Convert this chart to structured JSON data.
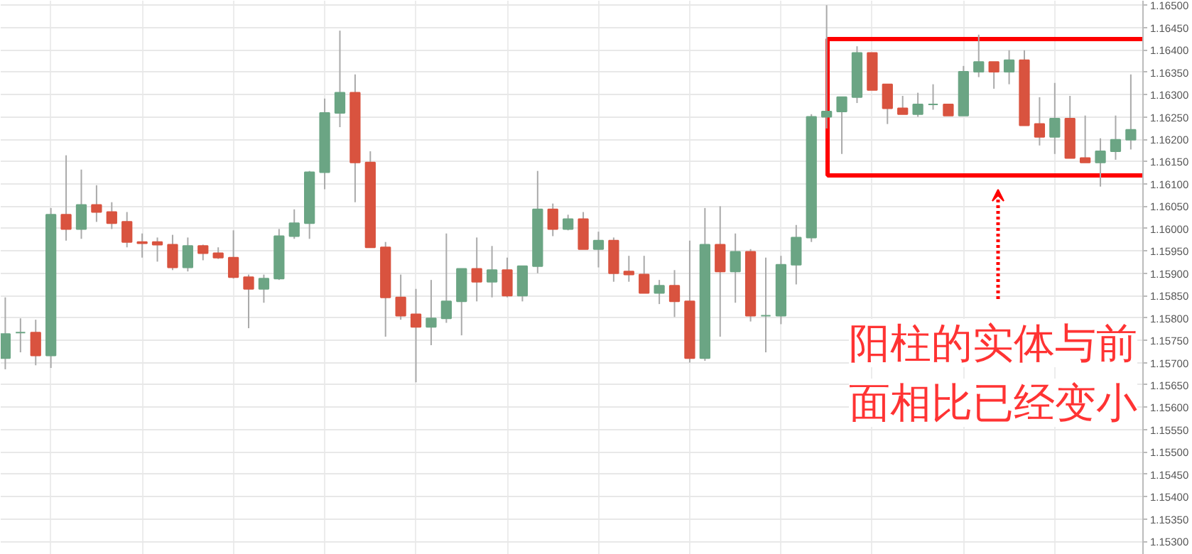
{
  "chart_data": {
    "type": "candlestick",
    "categories": [
      null,
      null,
      null,
      null,
      null,
      null,
      null,
      null,
      null,
      null,
      null,
      null,
      null,
      null,
      null,
      null,
      null,
      null,
      null,
      null,
      null,
      null,
      null,
      null,
      null,
      null,
      null,
      null,
      null,
      null,
      null,
      null,
      null,
      null,
      null,
      null,
      null,
      null,
      null,
      null,
      null,
      null,
      null,
      null,
      null,
      null,
      null,
      null,
      null,
      null,
      null,
      null,
      null,
      null,
      null,
      null,
      null,
      null,
      null,
      null,
      null,
      null,
      null,
      null,
      null,
      null,
      null,
      null,
      null,
      null,
      null,
      null,
      null,
      null,
      null
    ],
    "ohlc": [
      [
        1.1571,
        1.15846,
        1.15685,
        1.15764
      ],
      [
        1.15767,
        1.15799,
        1.15723,
        1.15767
      ],
      [
        1.15767,
        1.15796,
        1.15694,
        1.15716
      ],
      [
        1.15716,
        1.16046,
        1.15688,
        1.16031
      ],
      [
        1.16031,
        1.16164,
        1.15973,
        1.15999
      ],
      [
        1.15999,
        1.16132,
        1.15977,
        1.16053
      ],
      [
        1.16053,
        1.16097,
        1.16015,
        1.16037
      ],
      [
        1.16037,
        1.16059,
        1.15999,
        1.16012
      ],
      [
        1.16015,
        1.16037,
        1.15958,
        1.1597
      ],
      [
        1.1597,
        1.15989,
        1.15935,
        1.15967
      ],
      [
        1.1597,
        1.1598,
        1.15926,
        1.15964
      ],
      [
        1.15964,
        1.15986,
        1.15907,
        1.15913
      ],
      [
        1.15913,
        1.1598,
        1.15904,
        1.15961
      ],
      [
        1.15961,
        1.15964,
        1.15929,
        1.15945
      ],
      [
        1.15945,
        1.15958,
        1.15932,
        1.15935
      ],
      [
        1.15935,
        1.15996,
        1.15888,
        1.15891
      ],
      [
        1.15891,
        1.15897,
        1.15777,
        1.15865
      ],
      [
        1.15865,
        1.15897,
        1.15834,
        1.15888
      ],
      [
        1.15888,
        1.15999,
        1.15885,
        1.15983
      ],
      [
        1.15983,
        1.16043,
        1.15977,
        1.16012
      ],
      [
        1.16012,
        1.16129,
        1.15977,
        1.16126
      ],
      [
        1.16126,
        1.16291,
        1.16088,
        1.16259
      ],
      [
        1.16259,
        1.16443,
        1.16227,
        1.16304
      ],
      [
        1.16304,
        1.16345,
        1.16059,
        1.16148
      ],
      [
        1.16148,
        1.16173,
        1.15958,
        1.15958
      ],
      [
        1.15958,
        1.1597,
        1.15758,
        1.15846
      ],
      [
        1.15846,
        1.15897,
        1.15796,
        1.15805
      ],
      [
        1.15808,
        1.15865,
        1.15656,
        1.1578
      ],
      [
        1.1578,
        1.15885,
        1.15739,
        1.15799
      ],
      [
        1.15799,
        1.15989,
        1.15789,
        1.15837
      ],
      [
        1.15837,
        1.1591,
        1.15761,
        1.1591
      ],
      [
        1.1591,
        1.1598,
        1.15837,
        1.15881
      ],
      [
        1.15881,
        1.15961,
        1.15846,
        1.15907
      ],
      [
        1.15907,
        1.15935,
        1.15846,
        1.1585
      ],
      [
        1.1585,
        1.15916,
        1.15837,
        1.15916
      ],
      [
        1.15916,
        1.16129,
        1.159,
        1.16043
      ],
      [
        1.16043,
        1.16056,
        1.15983,
        1.15999
      ],
      [
        1.15999,
        1.16031,
        1.15996,
        1.16021
      ],
      [
        1.16021,
        1.16037,
        1.15954,
        1.15954
      ],
      [
        1.15954,
        1.15993,
        1.15913,
        1.15973
      ],
      [
        1.15973,
        1.1598,
        1.15881,
        1.159
      ],
      [
        1.15904,
        1.15939,
        1.15881,
        1.15897
      ],
      [
        1.15897,
        1.15939,
        1.15856,
        1.15856
      ],
      [
        1.15856,
        1.15885,
        1.15831,
        1.15872
      ],
      [
        1.15872,
        1.15907,
        1.15802,
        1.15837
      ],
      [
        1.15837,
        1.15973,
        1.157,
        1.1571
      ],
      [
        1.1571,
        1.16046,
        1.15704,
        1.15964
      ],
      [
        1.15964,
        1.1605,
        1.15758,
        1.15904
      ],
      [
        1.15904,
        1.15989,
        1.15834,
        1.15948
      ],
      [
        1.15948,
        1.15954,
        1.15792,
        1.15805
      ],
      [
        1.15805,
        1.15935,
        1.15723,
        1.15805
      ],
      [
        1.15805,
        1.15939,
        1.15786,
        1.15919
      ],
      [
        1.15919,
        1.16008,
        1.15875,
        1.1598
      ],
      [
        1.1598,
        1.16256,
        1.1597,
        1.1625
      ],
      [
        1.1625,
        1.165,
        1.16224,
        1.16262
      ],
      [
        1.16262,
        1.16294,
        1.16167,
        1.16294
      ],
      [
        1.16294,
        1.16408,
        1.16281,
        1.16393
      ],
      [
        1.16393,
        1.16393,
        1.1631,
        1.1631
      ],
      [
        1.16323,
        1.16323,
        1.16234,
        1.16269
      ],
      [
        1.16269,
        1.16297,
        1.16256,
        1.16256
      ],
      [
        1.16256,
        1.16304,
        1.1625,
        1.16278
      ],
      [
        1.16278,
        1.16323,
        1.16266,
        1.16278
      ],
      [
        1.16278,
        1.16278,
        1.16253,
        1.16253
      ],
      [
        1.16253,
        1.16364,
        1.16253,
        1.16351
      ],
      [
        1.16351,
        1.16434,
        1.16339,
        1.16373
      ],
      [
        1.16373,
        1.16373,
        1.16313,
        1.16351
      ],
      [
        1.16351,
        1.16399,
        1.16323,
        1.16377
      ],
      [
        1.16377,
        1.16399,
        1.16231,
        1.16231
      ],
      [
        1.16234,
        1.16294,
        1.16186,
        1.16205
      ],
      [
        1.16205,
        1.16326,
        1.16167,
        1.16246
      ],
      [
        1.16246,
        1.16297,
        1.16158,
        1.16158
      ],
      [
        1.16158,
        1.16253,
        1.16148,
        1.16148
      ],
      [
        1.16148,
        1.16202,
        1.16094,
        1.16173
      ],
      [
        1.16173,
        1.16253,
        1.16154,
        1.16199
      ],
      [
        1.16199,
        1.16345,
        1.16177,
        1.16221
      ]
    ],
    "colors": [
      "#6ba584",
      "#6ba584",
      "#d9533f",
      "#6ba584",
      "#d9533f",
      "#6ba584",
      "#d9533f",
      "#d9533f",
      "#d9533f",
      "#d9533f",
      "#d9533f",
      "#d9533f",
      "#6ba584",
      "#d9533f",
      "#d9533f",
      "#d9533f",
      "#d9533f",
      "#6ba584",
      "#6ba584",
      "#6ba584",
      "#6ba584",
      "#6ba584",
      "#6ba584",
      "#d9533f",
      "#d9533f",
      "#d9533f",
      "#d9533f",
      "#d9533f",
      "#6ba584",
      "#6ba584",
      "#6ba584",
      "#d9533f",
      "#6ba584",
      "#d9533f",
      "#6ba584",
      "#6ba584",
      "#d9533f",
      "#6ba584",
      "#d9533f",
      "#6ba584",
      "#d9533f",
      "#d9533f",
      "#d9533f",
      "#6ba584",
      "#d9533f",
      "#d9533f",
      "#6ba584",
      "#d9533f",
      "#6ba584",
      "#d9533f",
      "#6ba584",
      "#6ba584",
      "#6ba584",
      "#6ba584",
      "#6ba584",
      "#6ba584",
      "#6ba584",
      "#d9533f",
      "#d9533f",
      "#d9533f",
      "#6ba584",
      "#6ba584",
      "#d9533f",
      "#6ba584",
      "#6ba584",
      "#d9533f",
      "#6ba584",
      "#d9533f",
      "#d9533f",
      "#6ba584",
      "#d9533f",
      "#d9533f",
      "#6ba584",
      "#6ba584",
      "#6ba584"
    ],
    "ylim": [
      1.1527,
      1.1651
    ],
    "yticks": [
      {
        "value": 1.153,
        "label": "1.15300"
      },
      {
        "value": 1.1535,
        "label": "1.15350"
      },
      {
        "value": 1.154,
        "label": "1.15400"
      },
      {
        "value": 1.1545,
        "label": "1.15450"
      },
      {
        "value": 1.155,
        "label": "1.15500"
      },
      {
        "value": 1.1555,
        "label": "1.15550"
      },
      {
        "value": 1.156,
        "label": "1.15600"
      },
      {
        "value": 1.1565,
        "label": "1.15650"
      },
      {
        "value": 1.157,
        "label": "1.15700"
      },
      {
        "value": 1.1575,
        "label": "1.15750"
      },
      {
        "value": 1.158,
        "label": "1.15800"
      },
      {
        "value": 1.1585,
        "label": "1.15850"
      },
      {
        "value": 1.159,
        "label": "1.15900"
      },
      {
        "value": 1.1595,
        "label": "1.15950"
      },
      {
        "value": 1.16,
        "label": "1.16000"
      },
      {
        "value": 1.1605,
        "label": "1.16050"
      },
      {
        "value": 1.161,
        "label": "1.16100"
      },
      {
        "value": 1.1615,
        "label": "1.16150"
      },
      {
        "value": 1.162,
        "label": "1.16200"
      },
      {
        "value": 1.1625,
        "label": "1.16250"
      },
      {
        "value": 1.163,
        "label": "1.16300"
      },
      {
        "value": 1.1635,
        "label": "1.16350"
      },
      {
        "value": 1.164,
        "label": "1.16400"
      },
      {
        "value": 1.1645,
        "label": "1.16450"
      },
      {
        "value": 1.165,
        "label": "1.16500"
      }
    ],
    "grid": true,
    "tick_labels": "y",
    "annotations": [
      "阳柱的实体与前面相比已经变小"
    ]
  }
}
